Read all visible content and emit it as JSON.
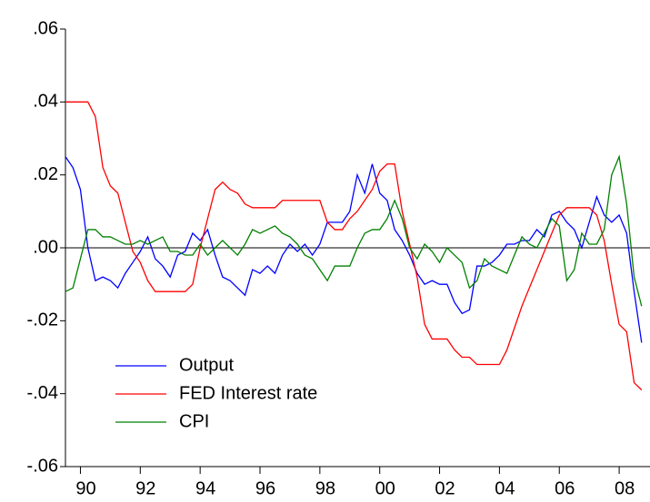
{
  "chart_data": {
    "type": "line",
    "x": [
      1989.5,
      1989.75,
      1990,
      1990.25,
      1990.5,
      1990.75,
      1991,
      1991.25,
      1991.5,
      1991.75,
      1992,
      1992.25,
      1992.5,
      1992.75,
      1993,
      1993.25,
      1993.5,
      1993.75,
      1994,
      1994.25,
      1994.5,
      1994.75,
      1995,
      1995.25,
      1995.5,
      1995.75,
      1996,
      1996.25,
      1996.5,
      1996.75,
      1997,
      1997.25,
      1997.5,
      1997.75,
      1998,
      1998.25,
      1998.5,
      1998.75,
      1999,
      1999.25,
      1999.5,
      1999.75,
      2000,
      2000.25,
      2000.5,
      2000.75,
      2001,
      2001.25,
      2001.5,
      2001.75,
      2002,
      2002.25,
      2002.5,
      2002.75,
      2003,
      2003.25,
      2003.5,
      2003.75,
      2004,
      2004.25,
      2004.5,
      2004.75,
      2005,
      2005.25,
      2005.5,
      2005.75,
      2006,
      2006.25,
      2006.5,
      2006.75,
      2007,
      2007.25,
      2007.5,
      2007.75,
      2008,
      2008.25,
      2008.5,
      2008.75
    ],
    "series": [
      {
        "name": "Output",
        "color": "#0000ff",
        "values": [
          0.025,
          0.022,
          0.016,
          0.0,
          -0.009,
          -0.008,
          -0.009,
          -0.011,
          -0.007,
          -0.004,
          -0.001,
          0.003,
          -0.003,
          -0.005,
          -0.008,
          -0.002,
          -0.001,
          0.004,
          0.002,
          0.005,
          -0.002,
          -0.008,
          -0.009,
          -0.011,
          -0.013,
          -0.006,
          -0.007,
          -0.005,
          -0.007,
          -0.002,
          0.001,
          -0.001,
          0.001,
          -0.002,
          0.001,
          0.007,
          0.007,
          0.007,
          0.01,
          0.02,
          0.015,
          0.023,
          0.015,
          0.013,
          0.005,
          0.002,
          -0.002,
          -0.007,
          -0.01,
          -0.009,
          -0.01,
          -0.01,
          -0.015,
          -0.018,
          -0.017,
          -0.005,
          -0.005,
          -0.004,
          -0.002,
          0.001,
          0.001,
          0.002,
          0.002,
          0.005,
          0.003,
          0.009,
          0.01,
          0.007,
          0.005,
          0.0,
          0.007,
          0.014,
          0.009,
          0.007,
          0.009,
          0.004,
          -0.012,
          -0.026
        ]
      },
      {
        "name": "FED Interest rate",
        "color": "#ff0000",
        "values": [
          0.04,
          0.04,
          0.04,
          0.04,
          0.036,
          0.022,
          0.017,
          0.015,
          0.007,
          -0.001,
          -0.004,
          -0.009,
          -0.012,
          -0.012,
          -0.012,
          -0.012,
          -0.012,
          -0.01,
          0.0,
          0.008,
          0.016,
          0.018,
          0.016,
          0.015,
          0.012,
          0.011,
          0.011,
          0.011,
          0.011,
          0.013,
          0.013,
          0.013,
          0.013,
          0.013,
          0.013,
          0.007,
          0.005,
          0.005,
          0.008,
          0.01,
          0.013,
          0.016,
          0.021,
          0.023,
          0.023,
          0.01,
          0.001,
          -0.008,
          -0.021,
          -0.025,
          -0.025,
          -0.025,
          -0.028,
          -0.03,
          -0.03,
          -0.032,
          -0.032,
          -0.032,
          -0.032,
          -0.028,
          -0.022,
          -0.016,
          -0.011,
          -0.006,
          -0.001,
          0.004,
          0.009,
          0.011,
          0.011,
          0.011,
          0.011,
          0.009,
          0.002,
          -0.01,
          -0.021,
          -0.023,
          -0.037,
          -0.039
        ]
      },
      {
        "name": "CPI",
        "color": "#008000",
        "values": [
          -0.012,
          -0.011,
          -0.003,
          0.005,
          0.005,
          0.003,
          0.003,
          0.002,
          0.001,
          0.001,
          0.002,
          0.001,
          0.002,
          0.003,
          -0.001,
          -0.001,
          -0.002,
          -0.002,
          0.001,
          -0.002,
          0.0,
          0.002,
          0.0,
          -0.002,
          0.001,
          0.005,
          0.004,
          0.005,
          0.006,
          0.004,
          0.003,
          0.001,
          -0.002,
          -0.003,
          -0.006,
          -0.009,
          -0.005,
          -0.005,
          -0.005,
          0.0,
          0.004,
          0.005,
          0.005,
          0.008,
          0.013,
          0.008,
          0.0,
          -0.003,
          0.001,
          -0.001,
          -0.004,
          0.0,
          -0.002,
          -0.004,
          -0.011,
          -0.009,
          -0.003,
          -0.005,
          -0.006,
          -0.007,
          -0.002,
          0.003,
          0.001,
          0.0,
          0.004,
          0.008,
          0.006,
          -0.009,
          -0.006,
          0.004,
          0.001,
          0.001,
          0.005,
          0.02,
          0.025,
          0.012,
          -0.008,
          -0.016
        ]
      }
    ],
    "xlim": [
      1989.5,
      2009.03
    ],
    "xticks": [
      {
        "value": 1990,
        "label": "90"
      },
      {
        "value": 1992,
        "label": "92"
      },
      {
        "value": 1994,
        "label": "94"
      },
      {
        "value": 1996,
        "label": "96"
      },
      {
        "value": 1998,
        "label": "98"
      },
      {
        "value": 2000,
        "label": "00"
      },
      {
        "value": 2002,
        "label": "02"
      },
      {
        "value": 2004,
        "label": "04"
      },
      {
        "value": 2006,
        "label": "06"
      },
      {
        "value": 2008,
        "label": "08"
      }
    ],
    "ylim": [
      -0.06,
      0.06
    ],
    "yticks": [
      {
        "value": -0.06,
        "label": "-.06"
      },
      {
        "value": -0.04,
        "label": "-.04"
      },
      {
        "value": -0.02,
        "label": "-.02"
      },
      {
        "value": 0,
        "label": ".00"
      },
      {
        "value": 0.02,
        "label": ".02"
      },
      {
        "value": 0.04,
        "label": ".04"
      },
      {
        "value": 0.06,
        "label": ".06"
      }
    ],
    "hline": 0,
    "legend": "lower left"
  }
}
